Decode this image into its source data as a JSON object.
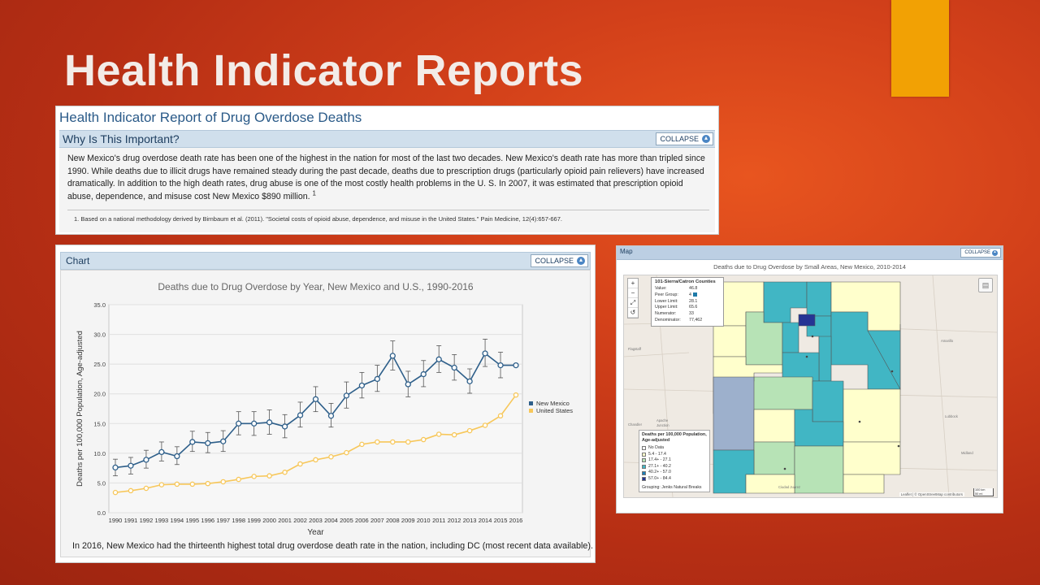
{
  "slide": {
    "title": "Health Indicator Reports",
    "accent_color": "#f2a104"
  },
  "report": {
    "title": "Health Indicator Report of Drug Overdose Deaths",
    "section_header": "Why Is This Important?",
    "collapse_label": "COLLAPSE",
    "paragraph": "New Mexico's drug overdose death rate has been one of the highest in the nation for most of the last two decades. New Mexico's death rate has more than tripled since 1990. While deaths due to illicit drugs have remained steady during the past decade, deaths due to prescription drugs (particularly opioid pain relievers) have increased dramatically. In addition to the high death rates, drug abuse is one of the most costly health problems in the U. S. In 2007, it was estimated that prescription opioid abuse, dependence, and misuse cost New Mexico $890 million.",
    "footnote_ref": "1",
    "footnote": "1. Based on a national methodology derived by Birnbaum et al. (2011). \"Societal costs of opioid abuse, dependence, and misuse in the United States.\" Pain Medicine, 12(4):657-667."
  },
  "chart_panel": {
    "header": "Chart",
    "collapse_label": "COLLAPSE",
    "caption": "In 2016, New Mexico had the thirteenth highest total drug overdose death rate in the nation, including DC (most recent data available)."
  },
  "chart_data": {
    "type": "line",
    "title": "Deaths due to Drug Overdose by Year, New Mexico and U.S., 1990-2016",
    "xlabel": "Year",
    "ylabel": "Deaths per 100,000 Population, Age-adjusted",
    "x": [
      "1990",
      "1991",
      "1992",
      "1993",
      "1994",
      "1995",
      "1996",
      "1997",
      "1998",
      "1999",
      "2000",
      "2001",
      "2002",
      "2003",
      "2004",
      "2005",
      "2006",
      "2007",
      "2008",
      "2009",
      "2010",
      "2011",
      "2012",
      "2013",
      "2014",
      "2015",
      "2016"
    ],
    "ylim": [
      0,
      35
    ],
    "yticks": [
      "0.0",
      "5.0",
      "10.0",
      "15.0",
      "20.0",
      "25.0",
      "30.0",
      "35.0"
    ],
    "grid": true,
    "legend_position": "right",
    "series": [
      {
        "name": "New Mexico",
        "color": "#2e5f8a",
        "values": [
          7.6,
          7.9,
          8.9,
          10.2,
          9.5,
          11.9,
          11.7,
          12.0,
          15.0,
          15.0,
          15.2,
          14.5,
          16.4,
          19.1,
          16.3,
          19.7,
          21.4,
          22.5,
          26.4,
          21.6,
          23.3,
          25.8,
          24.4,
          22.1,
          26.8,
          24.8,
          24.8
        ],
        "lower": [
          6.2,
          6.5,
          7.5,
          8.7,
          8.1,
          10.3,
          10.1,
          10.3,
          13.1,
          13.0,
          13.2,
          12.6,
          14.4,
          17.0,
          14.4,
          17.6,
          19.3,
          20.4,
          24.0,
          19.5,
          21.2,
          23.6,
          22.3,
          20.1,
          24.6,
          22.7,
          null
        ],
        "upper": [
          9.0,
          9.3,
          10.5,
          11.9,
          11.1,
          13.7,
          13.5,
          13.8,
          17.0,
          17.0,
          17.3,
          16.5,
          18.6,
          21.2,
          18.4,
          22.0,
          23.6,
          24.8,
          28.9,
          23.8,
          25.6,
          28.1,
          26.6,
          24.2,
          29.2,
          27.0,
          null
        ]
      },
      {
        "name": "United States",
        "color": "#f7c75a",
        "values": [
          3.4,
          3.7,
          4.1,
          4.7,
          4.8,
          4.8,
          4.9,
          5.2,
          5.6,
          6.1,
          6.2,
          6.8,
          8.2,
          8.9,
          9.4,
          10.1,
          11.5,
          11.9,
          11.9,
          11.9,
          12.3,
          13.2,
          13.1,
          13.8,
          14.7,
          16.3,
          19.8
        ]
      }
    ]
  },
  "map_panel": {
    "header": "Map",
    "collapse_label": "COLLAPSE",
    "title": "Deaths due to Drug Overdose by Small Areas, New Mexico, 2010-2014",
    "zoom_controls": [
      "+",
      "−",
      "⤢",
      "↺"
    ],
    "layers_icon": "layers-icon",
    "tooltip": {
      "title": "101-Sierra/Catron Counties",
      "rows": [
        {
          "label": "Value:",
          "value": "46.8"
        },
        {
          "label": "Peer Group:",
          "value": "4"
        },
        {
          "label": "Lower Limit:",
          "value": "28.1"
        },
        {
          "label": "Upper Limit:",
          "value": "65.6"
        },
        {
          "label": "Numerator:",
          "value": "33"
        },
        {
          "label": "Denominator:",
          "value": "77,462"
        }
      ]
    },
    "legend": {
      "title": "Deaths per 100,000 Population, Age-adjusted",
      "items": [
        {
          "label": "No Data",
          "color": "#ffffff"
        },
        {
          "label": "5.4 - 17.4",
          "color": "#ffffcc"
        },
        {
          "label": "17.4+ - 27.1",
          "color": "#b7e3b6"
        },
        {
          "label": "27.1+ - 40.2",
          "color": "#41b6c4"
        },
        {
          "label": "40.2+ - 57.0",
          "color": "#1d7fb8"
        },
        {
          "label": "57.0+ - 84.4",
          "color": "#253494"
        }
      ],
      "grouping": "Grouping: Jenks Natural Breaks"
    },
    "attribution": "Leaflet | © OpenStreetMap contributors",
    "scale": [
      "100 km",
      "50 mi"
    ]
  }
}
